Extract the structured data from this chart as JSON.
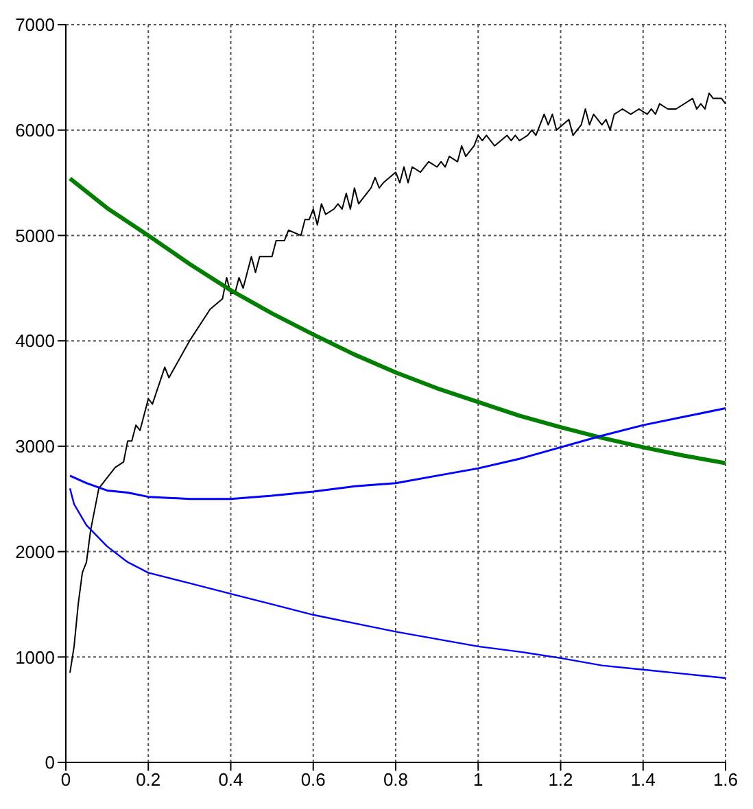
{
  "chart_data": {
    "type": "line",
    "xlim": [
      0,
      1.6
    ],
    "xticks": [
      0,
      0.2,
      0.4,
      0.6,
      0.8,
      1,
      1.2,
      1.4,
      1.6
    ],
    "ylim": [
      0,
      7000
    ],
    "yticks": [
      0,
      1000,
      2000,
      3000,
      4000,
      5000,
      6000,
      7000
    ],
    "grid": true,
    "marker": "none",
    "line_style": "solid",
    "series": [
      {
        "color": "#000000",
        "x": [
          0.01,
          0.02,
          0.03,
          0.04,
          0.05,
          0.06,
          0.08,
          0.1,
          0.12,
          0.14,
          0.15,
          0.16,
          0.17,
          0.18,
          0.2,
          0.21,
          0.24,
          0.25,
          0.3,
          0.35,
          0.38,
          0.39,
          0.4,
          0.41,
          0.42,
          0.43,
          0.45,
          0.46,
          0.47,
          0.5,
          0.51,
          0.53,
          0.54,
          0.57,
          0.58,
          0.59,
          0.6,
          0.61,
          0.62,
          0.63,
          0.65,
          0.66,
          0.67,
          0.68,
          0.69,
          0.7,
          0.71,
          0.73,
          0.74,
          0.75,
          0.76,
          0.77,
          0.8,
          0.81,
          0.82,
          0.83,
          0.84,
          0.86,
          0.88,
          0.9,
          0.91,
          0.92,
          0.93,
          0.95,
          0.96,
          0.97,
          0.98,
          0.99,
          1.0,
          1.01,
          1.02,
          1.04,
          1.07,
          1.08,
          1.09,
          1.1,
          1.12,
          1.13,
          1.14,
          1.16,
          1.17,
          1.18,
          1.19,
          1.22,
          1.23,
          1.25,
          1.26,
          1.27,
          1.28,
          1.3,
          1.31,
          1.32,
          1.33,
          1.35,
          1.37,
          1.39,
          1.41,
          1.42,
          1.43,
          1.44,
          1.46,
          1.48,
          1.52,
          1.53,
          1.54,
          1.55,
          1.56,
          1.57,
          1.59,
          1.6
        ],
        "values": [
          850,
          1100,
          1500,
          1800,
          1900,
          2200,
          2600,
          2700,
          2800,
          2850,
          3050,
          3050,
          3200,
          3150,
          3450,
          3400,
          3750,
          3650,
          4000,
          4300,
          4400,
          4600,
          4450,
          4450,
          4600,
          4500,
          4800,
          4650,
          4800,
          4800,
          4950,
          4950,
          5050,
          5000,
          5150,
          5150,
          5250,
          5100,
          5300,
          5200,
          5250,
          5300,
          5250,
          5400,
          5250,
          5450,
          5300,
          5400,
          5450,
          5550,
          5450,
          5500,
          5600,
          5500,
          5650,
          5500,
          5650,
          5600,
          5700,
          5650,
          5700,
          5650,
          5750,
          5700,
          5850,
          5750,
          5800,
          5850,
          5950,
          5900,
          5950,
          5850,
          5950,
          5900,
          5950,
          5900,
          5950,
          6000,
          5950,
          6150,
          6050,
          6150,
          6000,
          6100,
          5950,
          6050,
          6200,
          6050,
          6150,
          6050,
          6100,
          6000,
          6150,
          6200,
          6150,
          6200,
          6150,
          6200,
          6150,
          6250,
          6200,
          6200,
          6300,
          6200,
          6250,
          6200,
          6350,
          6300,
          6300,
          6250
        ]
      },
      {
        "color": "#007f00",
        "x": [
          0.01,
          0.1,
          0.2,
          0.3,
          0.4,
          0.5,
          0.6,
          0.7,
          0.8,
          0.9,
          1.0,
          1.1,
          1.2,
          1.3,
          1.4,
          1.5,
          1.6
        ],
        "values": [
          5540,
          5260,
          5000,
          4730,
          4480,
          4260,
          4060,
          3870,
          3700,
          3550,
          3420,
          3290,
          3180,
          3080,
          2990,
          2910,
          2840
        ]
      },
      {
        "color": "#0000ff",
        "x": [
          0.01,
          0.05,
          0.1,
          0.15,
          0.2,
          0.3,
          0.4,
          0.5,
          0.6,
          0.7,
          0.8,
          0.9,
          1.0,
          1.1,
          1.2,
          1.3,
          1.4,
          1.5,
          1.6
        ],
        "values": [
          2720,
          2650,
          2580,
          2560,
          2520,
          2500,
          2500,
          2530,
          2570,
          2620,
          2650,
          2720,
          2790,
          2880,
          2990,
          3100,
          3200,
          3280,
          3360
        ]
      },
      {
        "color": "#0000ff",
        "x": [
          0.01,
          0.02,
          0.05,
          0.1,
          0.15,
          0.2,
          0.3,
          0.4,
          0.5,
          0.6,
          0.7,
          0.8,
          0.9,
          1.0,
          1.1,
          1.2,
          1.3,
          1.4,
          1.5,
          1.6
        ],
        "values": [
          2600,
          2450,
          2250,
          2050,
          1900,
          1800,
          1700,
          1600,
          1500,
          1400,
          1320,
          1240,
          1170,
          1100,
          1050,
          990,
          920,
          880,
          840,
          800
        ]
      }
    ]
  }
}
